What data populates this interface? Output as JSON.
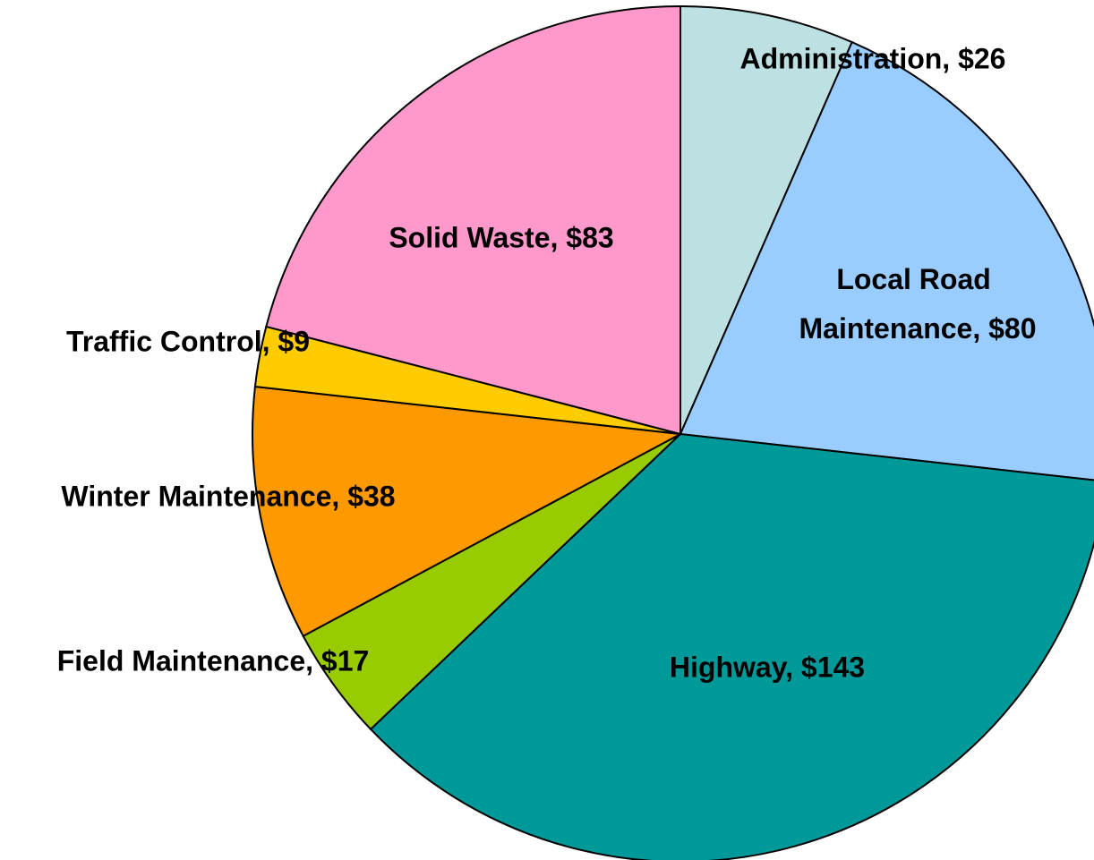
{
  "chart_data": {
    "type": "pie",
    "values": [
      26,
      80,
      143,
      17,
      38,
      9,
      83
    ],
    "value_labels": [
      "Administration, $26",
      "Local Road Maintenance, $80",
      "Highway, $143",
      "Field Maintenance, $17",
      "Winter Maintenance, $38",
      "Traffic Control, $9",
      "Solid Waste, $83"
    ],
    "colors": [
      "#bde0e3",
      "#99ccff",
      "#009999",
      "#99cc00",
      "#ff9900",
      "#ffcc00",
      "#ff99cc"
    ]
  }
}
